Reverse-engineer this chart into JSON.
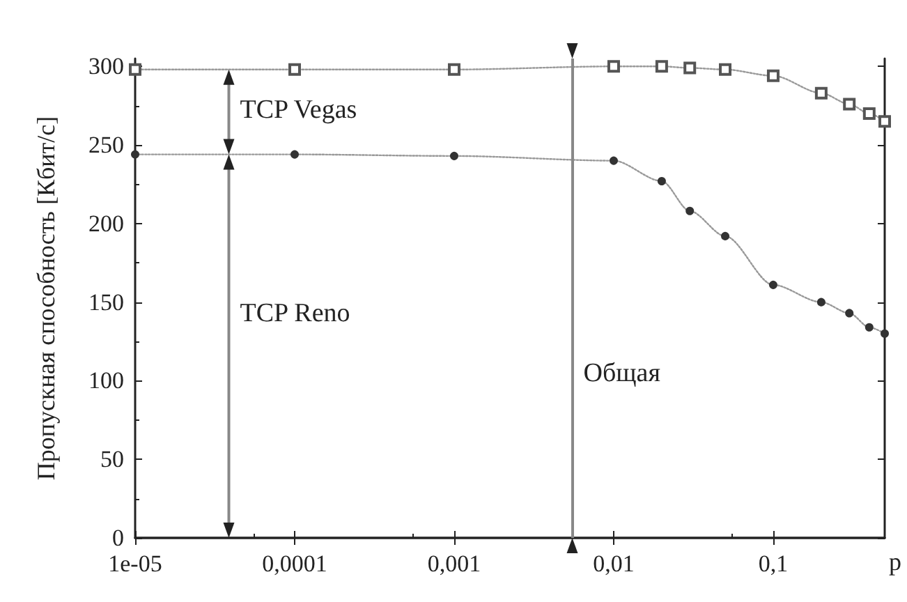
{
  "chart_data": {
    "type": "line",
    "ylabel": "Пропускная способность [Кбит/с]",
    "xlabel": "p",
    "log": "x",
    "xlim": [
      1e-05,
      0.5
    ],
    "xticks": [
      {
        "value": 1e-05,
        "label": "1e-05"
      },
      {
        "value": 0.0001,
        "label": "0,0001"
      },
      {
        "value": 0.001,
        "label": "0,001"
      },
      {
        "value": 0.01,
        "label": "0,01"
      },
      {
        "value": 0.1,
        "label": "0,1"
      }
    ],
    "ylim": [
      0,
      305
    ],
    "yticks": [
      0,
      50,
      100,
      150,
      200,
      250,
      300
    ],
    "grid": false,
    "line_style": "dotted",
    "series": [
      {
        "color": "#555555",
        "marker": "square",
        "x": [
          1e-05,
          0.0001,
          0.001,
          0.01,
          0.02,
          0.03,
          0.05,
          0.1,
          0.2,
          0.3,
          0.4,
          0.5
        ],
        "values": [
          298,
          298,
          298,
          300,
          300,
          299,
          298,
          294,
          283,
          276,
          270,
          265
        ]
      },
      {
        "color": "#333333",
        "marker": "circle",
        "x": [
          1e-05,
          0.0001,
          0.001,
          0.01,
          0.02,
          0.03,
          0.05,
          0.1,
          0.2,
          0.3,
          0.4,
          0.5
        ],
        "values": [
          244,
          244,
          243,
          240,
          227,
          208,
          192,
          161,
          150,
          143,
          134,
          130
        ]
      }
    ],
    "ref_lines": [
      {
        "axis": "x",
        "value": 0.0055,
        "label": "Общая",
        "color": "#888888"
      }
    ],
    "annotations": [
      "TCP Vegas",
      "TCP Reno"
    ]
  }
}
